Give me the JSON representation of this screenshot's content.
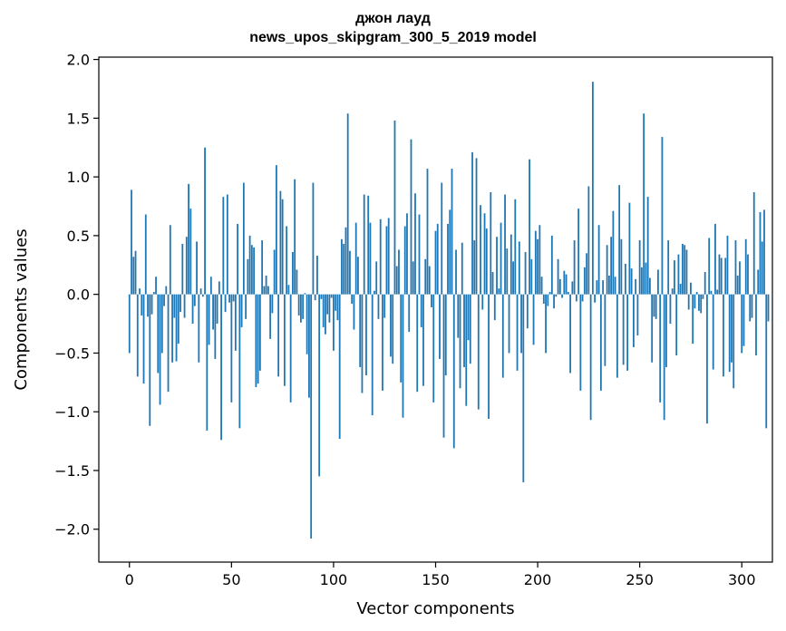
{
  "chart_data": {
    "type": "bar",
    "title": "джон лауд",
    "subtitle": "news_upos_skipgram_300_5_2019 model",
    "xlabel": "Vector components",
    "ylabel": "Components values",
    "xlim": [
      -15,
      315
    ],
    "ylim": [
      -2.28,
      2.02
    ],
    "xticks": [
      "0",
      "50",
      "100",
      "150",
      "200",
      "250",
      "300"
    ],
    "yticks": [
      "−2.0",
      "−1.5",
      "−1.0",
      "−0.5",
      "0.0",
      "0.5",
      "1.0",
      "1.5",
      "2.0"
    ],
    "bar_color": "#1f77b4",
    "grid": false,
    "values": [
      -0.5,
      0.89,
      0.32,
      0.37,
      -0.7,
      0.05,
      -0.18,
      -0.76,
      0.68,
      -0.19,
      -1.12,
      -0.17,
      0.02,
      0.15,
      -0.67,
      -0.94,
      -0.5,
      -0.1,
      0.07,
      -0.83,
      0.59,
      -0.58,
      -0.2,
      -0.57,
      -0.42,
      -0.15,
      0.43,
      -0.2,
      0.49,
      0.94,
      0.73,
      -0.25,
      -0.1,
      0.45,
      -0.58,
      0.05,
      -0.02,
      1.25,
      -1.16,
      -0.43,
      0.15,
      -0.3,
      -0.55,
      -0.25,
      0.11,
      -1.24,
      0.83,
      -0.15,
      0.85,
      -0.07,
      -0.92,
      -0.06,
      -0.48,
      0.6,
      -1.14,
      -0.28,
      0.95,
      -0.21,
      0.3,
      0.5,
      0.42,
      0.4,
      -0.79,
      -0.76,
      -0.65,
      0.46,
      0.07,
      0.16,
      0.07,
      -0.38,
      -0.16,
      0.38,
      1.1,
      -0.7,
      0.88,
      0.81,
      -0.78,
      0.58,
      0.08,
      -0.92,
      0.36,
      0.98,
      0.21,
      -0.18,
      -0.24,
      -0.21,
      0.01,
      -0.51,
      -0.88,
      -2.08,
      0.95,
      -0.05,
      0.33,
      -1.55,
      -0.04,
      -0.28,
      -0.34,
      -0.17,
      -0.24,
      -0.03,
      -0.48,
      -0.14,
      -0.22,
      -1.23,
      0.47,
      0.43,
      0.57,
      1.54,
      0.37,
      -0.08,
      -0.3,
      0.61,
      0.32,
      -0.62,
      -0.84,
      0.85,
      -0.69,
      0.84,
      0.61,
      -1.03,
      0.03,
      0.28,
      -0.21,
      0.64,
      -0.82,
      -0.2,
      0.58,
      0.65,
      -0.53,
      -0.59,
      1.48,
      0.24,
      0.38,
      -0.75,
      -1.05,
      0.58,
      0.69,
      -0.32,
      1.32,
      0.28,
      0.86,
      -0.83,
      0.68,
      -0.28,
      -0.78,
      0.3,
      1.07,
      0.24,
      -0.11,
      -0.92,
      0.54,
      0.6,
      -0.55,
      0.95,
      -1.22,
      -0.69,
      0.6,
      0.72,
      1.07,
      -1.31,
      0.38,
      -0.37,
      -0.8,
      0.44,
      -0.62,
      -0.95,
      -0.39,
      -0.59,
      1.21,
      0.46,
      1.16,
      -0.98,
      0.76,
      -0.13,
      0.69,
      0.56,
      -1.06,
      0.87,
      0.19,
      -0.22,
      0.49,
      0.05,
      0.61,
      -0.71,
      0.85,
      0.39,
      -0.5,
      0.51,
      0.28,
      0.81,
      -0.65,
      0.45,
      -0.5,
      -1.6,
      0.36,
      -0.29,
      1.15,
      0.3,
      -0.43,
      0.54,
      0.47,
      0.59,
      0.15,
      -0.08,
      -0.5,
      -0.1,
      0.02,
      0.5,
      -0.12,
      -0.02,
      0.3,
      0.13,
      -0.03,
      0.2,
      0.17,
      0.02,
      -0.67,
      0.11,
      0.46,
      -0.06,
      0.73,
      -0.82,
      -0.06,
      0.23,
      0.35,
      0.92,
      -1.07,
      1.81,
      -0.07,
      0.12,
      0.59,
      -0.82,
      0.12,
      -0.61,
      0.42,
      0.16,
      0.49,
      0.71,
      0.15,
      -0.71,
      0.93,
      0.47,
      -0.6,
      0.26,
      -0.65,
      0.78,
      0.22,
      -0.45,
      0.13,
      -0.35,
      0.46,
      0.23,
      1.54,
      0.27,
      0.83,
      0.14,
      -0.58,
      -0.19,
      -0.21,
      0.21,
      -0.92,
      1.34,
      -1.07,
      -0.62,
      0.46,
      -0.25,
      0.05,
      0.29,
      -0.52,
      0.34,
      0.09,
      0.43,
      0.42,
      0.38,
      -0.13,
      0.1,
      -0.42,
      -0.12,
      0.02,
      -0.14,
      -0.16,
      -0.04,
      0.19,
      -1.1,
      0.48,
      0.03,
      -0.64,
      0.6,
      0.04,
      0.34,
      0.31,
      -0.7,
      0.31,
      0.5,
      -0.66,
      -0.58,
      -0.8,
      0.46,
      0.16,
      0.28,
      -0.5,
      -0.44,
      0.47,
      0.34,
      -0.23,
      -0.2,
      0.87,
      -0.52,
      0.21,
      0.7,
      0.45,
      0.72,
      -1.14,
      -0.23
    ]
  }
}
